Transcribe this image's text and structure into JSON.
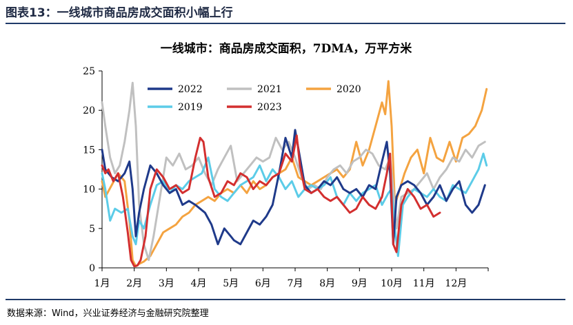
{
  "figure_title": "图表13：一线城市商品房成交面积小幅上行",
  "source": "数据来源：Wind，兴业证券经济与金融研究院整理",
  "colors": {
    "2022": "#1f3a8a",
    "2021": "#c0c0c0",
    "2020": "#f4a340",
    "2019": "#5ccce8",
    "2023": "#d32f2f"
  },
  "chart_data": {
    "type": "line",
    "title": "一线城市：商品房成交面积，7DMA，万平方米",
    "xlabel": "",
    "ylabel": "",
    "ylim": [
      0,
      25
    ],
    "yticks": [
      0,
      5,
      10,
      15,
      20,
      25
    ],
    "xlim": [
      1,
      13
    ],
    "x_tick_labels": [
      "1月",
      "2月",
      "3月",
      "4月",
      "5月",
      "6月",
      "7月",
      "8月",
      "9月",
      "10月",
      "11月",
      "12月"
    ],
    "grid": false,
    "legend": "top-left",
    "series": [
      {
        "name": "2022",
        "x": [
          1.0,
          1.1,
          1.3,
          1.5,
          1.7,
          1.85,
          1.95,
          2.05,
          2.15,
          2.3,
          2.5,
          2.7,
          2.9,
          3.1,
          3.3,
          3.5,
          3.7,
          3.9,
          4.05,
          4.2,
          4.4,
          4.6,
          4.8,
          5.0,
          5.1,
          5.3,
          5.5,
          5.7,
          5.9,
          6.1,
          6.3,
          6.5,
          6.7,
          6.9,
          7.0,
          7.15,
          7.3,
          7.5,
          7.7,
          7.9,
          8.1,
          8.3,
          8.5,
          8.7,
          8.9,
          9.1,
          9.3,
          9.5,
          9.7,
          9.85,
          9.95,
          10.05,
          10.15,
          10.3,
          10.5,
          10.7,
          10.9,
          11.1,
          11.3,
          11.5,
          11.7,
          11.9,
          12.1,
          12.3,
          12.5,
          12.7,
          12.9
        ],
        "y": [
          15.0,
          12.5,
          11.5,
          11.0,
          12.0,
          13.5,
          10.0,
          4.0,
          7.0,
          10.0,
          13.0,
          12.0,
          10.5,
          9.5,
          10.0,
          8.0,
          8.5,
          8.0,
          7.5,
          7.0,
          5.5,
          3.0,
          5.0,
          4.0,
          3.5,
          3.0,
          4.5,
          6.0,
          5.5,
          6.5,
          8.0,
          12.0,
          16.5,
          14.0,
          17.5,
          14.0,
          10.5,
          9.5,
          10.0,
          11.0,
          10.5,
          11.5,
          10.0,
          9.5,
          10.0,
          9.0,
          10.5,
          10.0,
          13.5,
          16.0,
          12.0,
          3.0,
          9.0,
          10.5,
          11.0,
          10.5,
          9.5,
          8.0,
          9.0,
          10.5,
          8.5,
          10.0,
          11.0,
          8.0,
          7.0,
          8.0,
          10.5
        ]
      },
      {
        "name": "2021",
        "x": [
          1.0,
          1.1,
          1.25,
          1.4,
          1.55,
          1.7,
          1.85,
          1.95,
          2.05,
          2.15,
          2.3,
          2.45,
          2.6,
          2.8,
          3.0,
          3.2,
          3.4,
          3.6,
          3.8,
          4.0,
          4.2,
          4.4,
          4.6,
          4.8,
          5.0,
          5.2,
          5.4,
          5.6,
          5.8,
          6.0,
          6.2,
          6.4,
          6.6,
          6.8,
          7.0,
          7.2,
          7.4,
          7.6,
          7.8,
          8.0,
          8.2,
          8.4,
          8.6,
          8.8,
          9.0,
          9.2,
          9.4,
          9.6,
          9.8,
          9.95,
          10.05,
          10.15,
          10.3,
          10.5,
          10.7,
          10.9,
          11.1,
          11.3,
          11.5,
          11.7,
          11.9,
          12.1,
          12.3,
          12.5,
          12.7,
          12.9
        ],
        "y": [
          21.0,
          18.0,
          14.0,
          12.0,
          13.0,
          16.0,
          20.0,
          23.5,
          18.0,
          8.0,
          3.0,
          1.0,
          4.0,
          9.0,
          14.0,
          13.0,
          14.5,
          12.5,
          13.0,
          14.0,
          12.0,
          10.5,
          12.5,
          14.0,
          15.5,
          11.0,
          12.0,
          13.0,
          14.0,
          13.5,
          14.0,
          16.5,
          15.0,
          16.0,
          14.0,
          11.5,
          10.0,
          10.5,
          10.0,
          11.5,
          12.5,
          13.0,
          12.0,
          13.5,
          14.0,
          15.0,
          14.5,
          13.0,
          12.5,
          14.0,
          10.0,
          5.0,
          9.0,
          9.5,
          10.0,
          11.0,
          12.0,
          10.0,
          11.5,
          12.5,
          14.0,
          13.5,
          15.0,
          14.0,
          15.5,
          16.0
        ]
      },
      {
        "name": "2020",
        "x": [
          1.0,
          1.1,
          1.3,
          1.5,
          1.7,
          1.85,
          1.95,
          2.05,
          2.15,
          2.3,
          2.5,
          2.7,
          2.9,
          3.1,
          3.3,
          3.5,
          3.7,
          3.9,
          4.1,
          4.3,
          4.5,
          4.7,
          4.9,
          5.1,
          5.3,
          5.5,
          5.7,
          5.9,
          6.1,
          6.3,
          6.5,
          6.7,
          6.9,
          7.1,
          7.3,
          7.5,
          7.7,
          7.9,
          8.1,
          8.3,
          8.5,
          8.7,
          8.9,
          9.1,
          9.3,
          9.5,
          9.7,
          9.8,
          9.9,
          10.0,
          10.1,
          10.25,
          10.4,
          10.6,
          10.8,
          11.0,
          11.2,
          11.4,
          11.6,
          11.8,
          12.0,
          12.2,
          12.4,
          12.6,
          12.8,
          12.95
        ],
        "y": [
          11.0,
          9.0,
          10.5,
          12.0,
          11.0,
          6.0,
          1.0,
          0.2,
          0.5,
          0.8,
          1.5,
          3.0,
          4.5,
          5.0,
          5.5,
          6.5,
          7.0,
          8.0,
          8.5,
          9.0,
          8.5,
          9.5,
          10.0,
          9.5,
          10.5,
          9.5,
          11.0,
          10.0,
          10.5,
          11.5,
          12.0,
          12.5,
          14.0,
          11.5,
          11.0,
          10.5,
          11.0,
          11.5,
          12.0,
          12.5,
          11.5,
          12.5,
          16.0,
          13.0,
          15.0,
          18.0,
          21.0,
          19.5,
          23.7,
          18.0,
          8.0,
          10.0,
          12.0,
          14.0,
          15.0,
          12.0,
          16.5,
          14.0,
          13.5,
          16.0,
          13.5,
          16.5,
          17.0,
          18.0,
          20.0,
          22.7
        ]
      },
      {
        "name": "2019",
        "x": [
          1.0,
          1.1,
          1.25,
          1.4,
          1.6,
          1.8,
          1.95,
          2.05,
          2.15,
          2.3,
          2.5,
          2.7,
          2.9,
          3.1,
          3.3,
          3.5,
          3.7,
          3.9,
          4.1,
          4.3,
          4.5,
          4.7,
          4.9,
          5.1,
          5.3,
          5.5,
          5.7,
          5.9,
          6.1,
          6.3,
          6.5,
          6.7,
          6.9,
          7.1,
          7.3,
          7.5,
          7.7,
          7.9,
          8.1,
          8.3,
          8.5,
          8.7,
          8.9,
          9.1,
          9.3,
          9.5,
          9.7,
          9.9,
          10.0,
          10.1,
          10.2,
          10.35,
          10.5,
          10.7,
          10.9,
          11.1,
          11.3,
          11.5,
          11.7,
          11.9,
          12.1,
          12.3,
          12.5,
          12.7,
          12.85,
          12.95
        ],
        "y": [
          12.0,
          10.0,
          6.0,
          7.5,
          7.0,
          7.5,
          4.0,
          3.0,
          6.0,
          5.0,
          8.0,
          10.5,
          11.0,
          9.5,
          10.5,
          10.0,
          11.0,
          11.5,
          12.0,
          14.0,
          10.0,
          9.0,
          8.5,
          9.5,
          10.5,
          11.0,
          11.5,
          13.0,
          11.0,
          12.5,
          11.5,
          10.0,
          11.0,
          9.0,
          10.0,
          10.5,
          10.0,
          10.5,
          11.5,
          9.0,
          8.0,
          9.5,
          8.5,
          9.5,
          10.0,
          10.5,
          8.0,
          9.5,
          10.0,
          5.0,
          1.5,
          8.0,
          9.0,
          10.0,
          9.5,
          9.0,
          10.0,
          9.0,
          8.5,
          10.5,
          10.0,
          9.5,
          11.0,
          12.5,
          14.5,
          13.0
        ]
      },
      {
        "name": "2023",
        "x": [
          1.0,
          1.1,
          1.2,
          1.35,
          1.5,
          1.65,
          1.8,
          1.9,
          2.0,
          2.1,
          2.2,
          2.35,
          2.5,
          2.7,
          2.9,
          3.1,
          3.3,
          3.5,
          3.7,
          3.9,
          4.05,
          4.15,
          4.3,
          4.5,
          4.7,
          4.9,
          5.1,
          5.3,
          5.5,
          5.7,
          5.9,
          6.1,
          6.3,
          6.5,
          6.7,
          6.9,
          7.05,
          7.15,
          7.3,
          7.5,
          7.7,
          7.9,
          8.1,
          8.3,
          8.5,
          8.7,
          8.9,
          9.1,
          9.3,
          9.5,
          9.7,
          9.85,
          9.95,
          10.05,
          10.15,
          10.3,
          10.5,
          10.7,
          10.9,
          11.1,
          11.3,
          11.5
        ],
        "y": [
          13.0,
          12.0,
          12.5,
          11.0,
          12.0,
          9.0,
          4.5,
          1.0,
          0.2,
          0.3,
          1.0,
          4.0,
          10.0,
          12.5,
          11.5,
          10.0,
          10.5,
          9.5,
          10.0,
          14.0,
          16.5,
          16.0,
          11.5,
          9.0,
          9.5,
          11.0,
          10.5,
          12.0,
          11.5,
          10.0,
          11.0,
          10.5,
          11.5,
          12.0,
          14.5,
          13.5,
          16.8,
          13.0,
          10.0,
          9.5,
          10.0,
          9.0,
          8.5,
          9.0,
          8.0,
          7.0,
          7.5,
          9.0,
          8.0,
          7.5,
          9.0,
          12.0,
          14.5,
          3.0,
          2.0,
          8.0,
          10.0,
          9.0,
          7.5,
          8.0,
          6.5,
          7.0
        ]
      }
    ]
  }
}
